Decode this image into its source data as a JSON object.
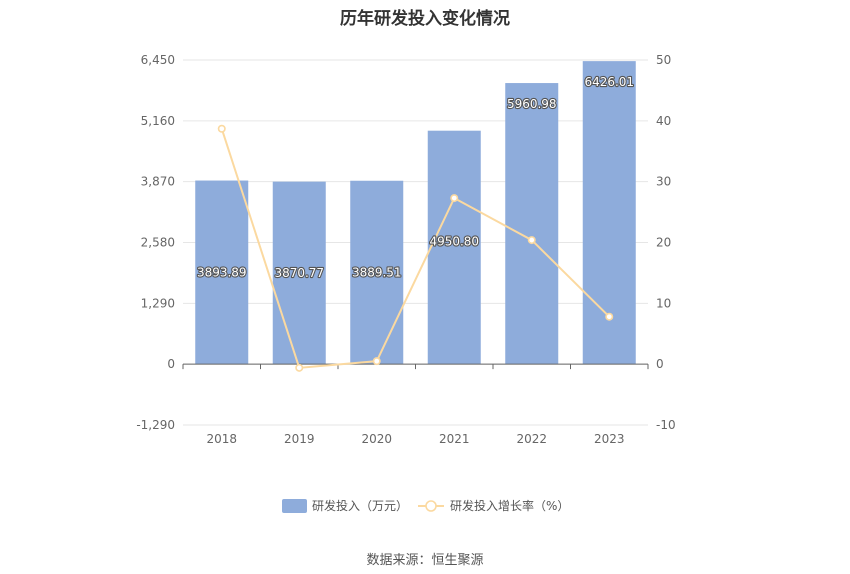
{
  "chart_data": {
    "type": "bar",
    "title": "历年研发投入变化情况",
    "categories": [
      "2018",
      "2019",
      "2020",
      "2021",
      "2022",
      "2023"
    ],
    "series": [
      {
        "name": "研发投入（万元）",
        "type": "bar",
        "axis": "left",
        "color": "#8eacdb",
        "values": [
          3893.89,
          3870.77,
          3889.51,
          4950.8,
          5960.98,
          6426.01
        ],
        "labels": [
          "3893.89",
          "3870.77",
          "3889.51",
          "4950.80",
          "5960.98",
          "6426.01"
        ]
      },
      {
        "name": "研发投入增长率（%）",
        "type": "line",
        "axis": "right",
        "color": "#fbd9a0",
        "values": [
          38.7,
          -0.6,
          0.5,
          27.3,
          20.4,
          7.8
        ]
      }
    ],
    "y_left": {
      "ylim": [
        -1290,
        6450
      ],
      "ticks": [
        "-1,290",
        "0",
        "1,290",
        "2,580",
        "3,870",
        "5,160",
        "6,450"
      ]
    },
    "y_right": {
      "ylim": [
        -10,
        50
      ],
      "ticks": [
        "-10",
        "0",
        "10",
        "20",
        "30",
        "40",
        "50"
      ]
    },
    "grid": true,
    "legend_position": "bottom"
  },
  "source": "数据来源：恒生聚源"
}
